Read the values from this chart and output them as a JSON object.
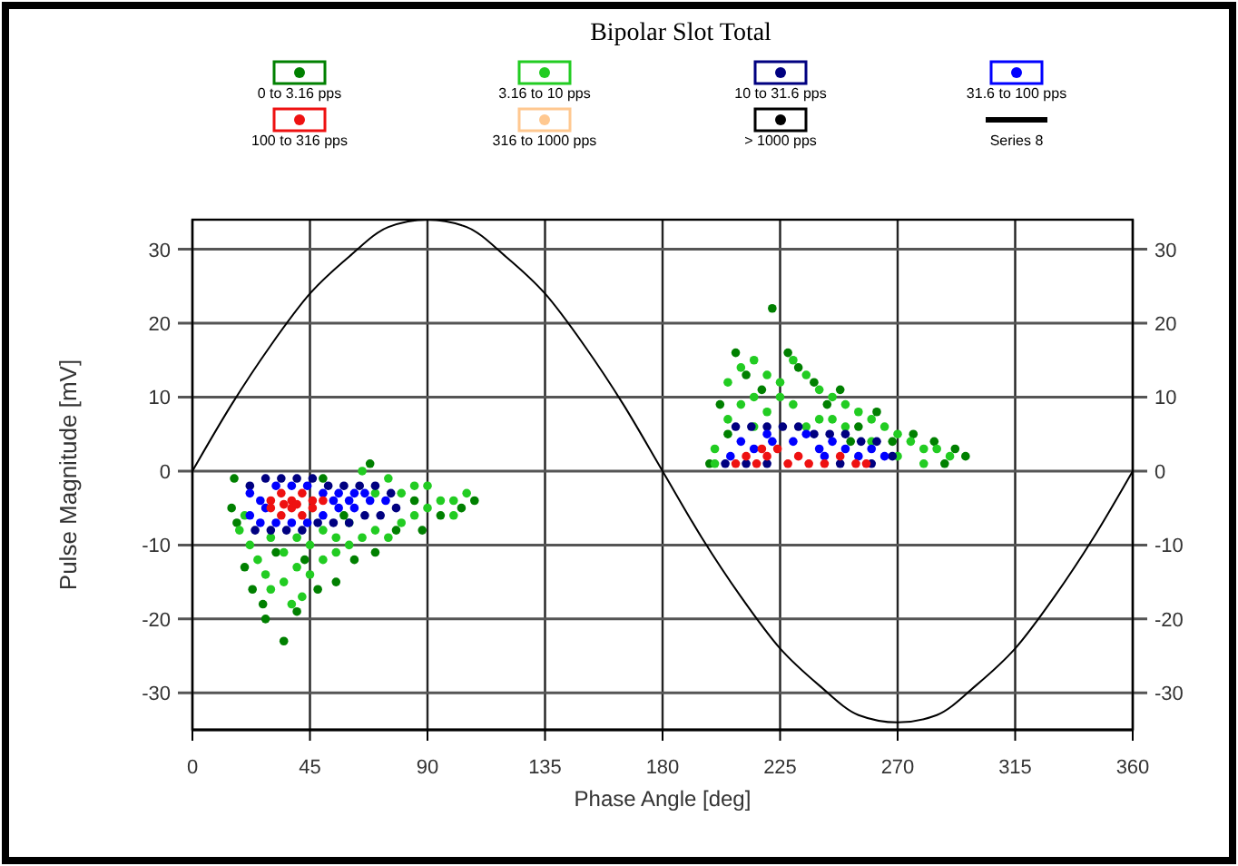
{
  "chart_data": {
    "type": "scatter",
    "title": "Bipolar Slot Total",
    "xlabel": "Phase Angle [deg]",
    "ylabel": "Pulse Magnitude [mV]",
    "xlim": [
      0,
      360
    ],
    "xticks": [
      0,
      45,
      90,
      135,
      180,
      225,
      270,
      315,
      360
    ],
    "ylim": [
      -35,
      34
    ],
    "yticks": [
      -30,
      -20,
      -10,
      0,
      10,
      20,
      30
    ],
    "y2lim": [
      -35,
      34
    ],
    "y2ticks": [
      -30,
      -20,
      -10,
      0,
      10,
      20,
      30
    ],
    "grid": true,
    "legend": "top",
    "marker": "circle",
    "series": [
      {
        "name": "0 to 3.16 pps",
        "color": "#008000",
        "x": [
          16,
          15,
          17,
          20,
          23,
          27,
          35,
          40,
          48,
          55,
          62,
          70,
          78,
          88,
          95,
          103,
          108,
          68,
          50,
          32,
          43,
          58,
          85,
          28,
          198,
          205,
          208,
          212,
          218,
          222,
          228,
          232,
          238,
          243,
          248,
          255,
          262,
          268,
          276,
          284,
          292,
          296,
          202,
          252,
          288
        ],
        "values": [
          -1,
          -5,
          -7,
          -13,
          -16,
          -18,
          -23,
          -19,
          -16,
          -15,
          -12,
          -11,
          -8,
          -8,
          -6,
          -5,
          -4,
          1,
          -1,
          -11,
          -12,
          -6,
          -4,
          -20,
          1,
          5,
          16,
          13,
          11,
          22,
          16,
          14,
          12,
          9,
          11,
          6,
          8,
          4,
          5,
          4,
          3,
          2,
          9,
          4,
          1
        ]
      },
      {
        "name": "3.16 to 10 pps",
        "color": "#22cc22",
        "x": [
          18,
          22,
          25,
          28,
          30,
          35,
          40,
          45,
          50,
          55,
          60,
          65,
          70,
          75,
          80,
          85,
          90,
          95,
          100,
          105,
          30,
          40,
          50,
          60,
          35,
          45,
          55,
          70,
          80,
          90,
          65,
          75,
          85,
          100,
          20,
          38,
          42,
          205,
          210,
          215,
          220,
          225,
          230,
          235,
          240,
          245,
          250,
          255,
          260,
          265,
          270,
          275,
          280,
          285,
          290,
          205,
          210,
          215,
          220,
          230,
          240,
          250,
          260,
          270,
          280,
          200,
          200,
          215,
          235,
          225,
          245
        ],
        "values": [
          -8,
          -10,
          -12,
          -14,
          -16,
          -15,
          -13,
          -14,
          -12,
          -11,
          -10,
          -9,
          -8,
          -9,
          -7,
          -6,
          -5,
          -4,
          -4,
          -3,
          -9,
          -9,
          -8,
          -7,
          -11,
          -10,
          -9,
          -3,
          -3,
          -2,
          0,
          -1,
          -2,
          -6,
          -6,
          -18,
          -17,
          12,
          14,
          15,
          13,
          12,
          15,
          13,
          11,
          10,
          9,
          8,
          7,
          6,
          5,
          4,
          3,
          3,
          2,
          7,
          9,
          10,
          8,
          9,
          7,
          6,
          4,
          2,
          1,
          3,
          1,
          6,
          6,
          10,
          7
        ]
      },
      {
        "name": "10 to 31.6 pps",
        "color": "#000080",
        "x": [
          22,
          28,
          34,
          40,
          46,
          52,
          58,
          64,
          70,
          76,
          24,
          30,
          36,
          42,
          48,
          54,
          60,
          66,
          72,
          78,
          208,
          214,
          220,
          226,
          232,
          238,
          244,
          250,
          256,
          262,
          204,
          212,
          220,
          248,
          260,
          268
        ],
        "values": [
          -2,
          -1,
          -1,
          -1,
          -1,
          -2,
          -2,
          -2,
          -2,
          -3,
          -8,
          -8,
          -8,
          -8,
          -7,
          -7,
          -7,
          -6,
          -6,
          -5,
          6,
          6,
          6,
          6,
          6,
          5,
          5,
          5,
          4,
          4,
          1,
          1,
          1,
          1,
          1,
          2
        ]
      },
      {
        "name": "31.6 to 100 pps",
        "color": "#0000ff",
        "x": [
          22,
          22,
          26,
          26,
          32,
          32,
          38,
          38,
          44,
          44,
          50,
          50,
          56,
          56,
          62,
          62,
          68,
          74,
          54,
          60,
          66,
          28,
          210,
          215,
          220,
          230,
          235,
          240,
          245,
          250,
          255,
          260,
          265,
          206,
          222,
          242
        ],
        "values": [
          -3,
          -6,
          -4,
          -7,
          -2,
          -7,
          -2,
          -7,
          -2,
          -7,
          -3,
          -6,
          -3,
          -5,
          -3,
          -5,
          -4,
          -4,
          -4,
          -4,
          -3,
          -5,
          4,
          3,
          5,
          4,
          5,
          3,
          4,
          3,
          2,
          3,
          2,
          2,
          4,
          2
        ]
      },
      {
        "name": "100 to 316 pps",
        "color": "#ee1111",
        "x": [
          30,
          30,
          34,
          34,
          38,
          38,
          42,
          42,
          46,
          46,
          50,
          40,
          35,
          208,
          212,
          216,
          220,
          224,
          228,
          232,
          236,
          242,
          248,
          254,
          258,
          218
        ],
        "values": [
          -4,
          -5,
          -3,
          -6,
          -4,
          -5,
          -3,
          -6,
          -4,
          -5,
          -4,
          -4.5,
          -4.5,
          1,
          2,
          1,
          2,
          3,
          1,
          2,
          1,
          1,
          2,
          1,
          1,
          3
        ]
      },
      {
        "name": "316 to 1000 pps",
        "color": "#ffc890"
      },
      {
        "name": "> 1000 pps",
        "color": "#000000"
      },
      {
        "name": "Series 8",
        "type": "line",
        "color": "#000000",
        "marker": "none",
        "x": [
          0,
          15,
          30,
          45,
          60,
          75,
          90,
          105,
          120,
          135,
          150,
          165,
          180,
          195,
          210,
          225,
          240,
          255,
          270,
          285,
          300,
          315,
          330,
          345,
          360
        ],
        "values": [
          0,
          9,
          17,
          24,
          29,
          33,
          34,
          33,
          29,
          24,
          17,
          9,
          0,
          -9,
          -17,
          -24,
          -29,
          -33,
          -34,
          -33,
          -29,
          -24,
          -17,
          -9,
          0
        ]
      }
    ]
  }
}
